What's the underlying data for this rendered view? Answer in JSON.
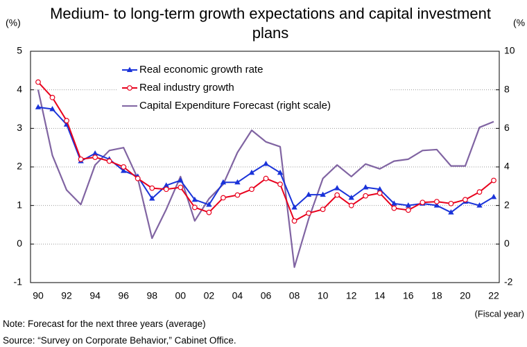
{
  "chart_data": {
    "type": "line",
    "title": "Medium- to long-term growth expectations and capital investment plans",
    "y_label": "(%)",
    "y2_label": "(%",
    "x_label": "(Fiscal year)",
    "note": "Note: Forecast for the next three years (average)",
    "source": "Source: “Survey on Corporate Behavior,” Cabinet Office.",
    "categories": [
      "90",
      null,
      "92",
      null,
      "94",
      null,
      "96",
      null,
      "98",
      null,
      "00",
      null,
      "02",
      null,
      "04",
      null,
      "06",
      null,
      "08",
      null,
      "10",
      null,
      "12",
      null,
      "14",
      null,
      "16",
      null,
      "18",
      null,
      "20",
      null,
      "22"
    ],
    "ylim": [
      -1,
      5
    ],
    "yticks": [
      -1,
      0,
      1,
      2,
      3,
      4,
      5
    ],
    "y2lim": [
      -2,
      10
    ],
    "y2ticks": [
      -2,
      0,
      2,
      4,
      6,
      8,
      10
    ],
    "grid": true,
    "series": [
      {
        "name": "Real economic growth rate",
        "color": "#1a33d9",
        "marker": "triangle",
        "values": [
          3.55,
          3.5,
          3.1,
          2.15,
          2.35,
          2.2,
          1.9,
          1.75,
          1.18,
          1.52,
          1.65,
          1.15,
          1.02,
          1.6,
          1.6,
          1.85,
          2.08,
          1.85,
          0.95,
          1.28,
          1.28,
          1.45,
          1.2,
          1.47,
          1.42,
          1.05,
          1.0,
          1.05,
          1.0,
          0.82,
          1.1,
          1.0,
          1.22
        ]
      },
      {
        "name": "Real industry growth",
        "color": "#e8001c",
        "marker": "circle",
        "values": [
          4.2,
          3.8,
          3.2,
          2.2,
          2.25,
          2.15,
          2.0,
          1.7,
          1.45,
          1.42,
          1.47,
          0.95,
          0.82,
          1.2,
          1.27,
          1.42,
          1.7,
          1.55,
          0.6,
          0.8,
          0.9,
          1.27,
          1.0,
          1.25,
          1.32,
          0.93,
          0.88,
          1.08,
          1.1,
          1.05,
          1.15,
          1.35,
          1.65
        ]
      },
      {
        "name": "Capital Expenditure Forecast (right scale)",
        "color": "#8064a2",
        "axis": "y2",
        "values": [
          8.0,
          4.6,
          2.8,
          2.05,
          4.1,
          4.85,
          5.0,
          3.4,
          0.3,
          1.8,
          3.5,
          1.2,
          2.35,
          3.1,
          4.75,
          5.9,
          5.3,
          5.05,
          -1.2,
          1.3,
          3.4,
          4.1,
          3.5,
          4.15,
          3.9,
          4.3,
          4.4,
          4.85,
          4.9,
          4.05,
          4.05,
          6.05,
          6.35
        ]
      }
    ]
  }
}
